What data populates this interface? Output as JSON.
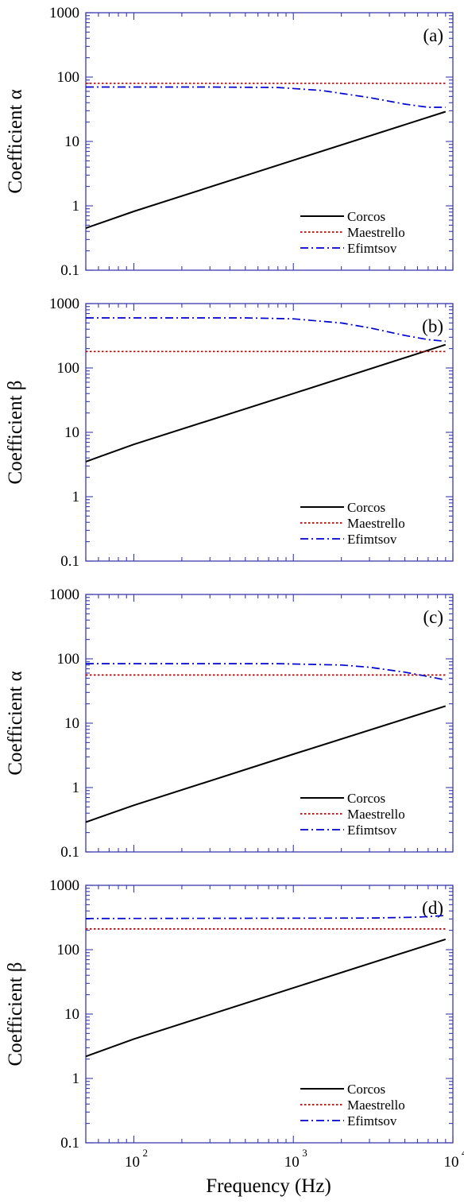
{
  "xaxis": {
    "label": "Frequency (Hz)",
    "range": [
      50,
      10000
    ],
    "scale": "log",
    "ticks": [
      {
        "base": "10",
        "exp": "2",
        "value": 100
      },
      {
        "base": "10",
        "exp": "3",
        "value": 1000
      },
      {
        "base": "10",
        "exp": "4",
        "value": 10000
      }
    ]
  },
  "colors": {
    "axes": "#3a3ab0",
    "Corcos": "#000000",
    "Maestrello": "#c00000",
    "Efimtsov": "#0000cc"
  },
  "chart_data": [
    {
      "type": "line",
      "panel_label": "(a)",
      "ylabel": "Coefficient α",
      "yscale": "log",
      "ylim": [
        0.1,
        1000
      ],
      "yticks": [
        "0.1",
        "1",
        "10",
        "100",
        "1000"
      ],
      "legend": {
        "placement": "bottom-right",
        "entries": [
          "Corcos",
          "Maestrello",
          "Efimtsov"
        ]
      },
      "series": [
        {
          "name": "Corcos",
          "style": "solid",
          "x": [
            50,
            100,
            1000,
            9000
          ],
          "y": [
            0.45,
            0.82,
            5.1,
            29
          ]
        },
        {
          "name": "Maestrello",
          "style": "dotted",
          "x": [
            50,
            9000
          ],
          "y": [
            80,
            80
          ]
        },
        {
          "name": "Efimtsov",
          "style": "dash-dot",
          "x": [
            50,
            300,
            800,
            1500,
            3000,
            5000,
            7000,
            9000
          ],
          "y": [
            70,
            70,
            69,
            62,
            48,
            38,
            34,
            34
          ]
        }
      ]
    },
    {
      "type": "line",
      "panel_label": "(b)",
      "ylabel": "Coefficient β",
      "yscale": "log",
      "ylim": [
        0.1,
        1000
      ],
      "yticks": [
        "0.1",
        "1",
        "10",
        "100",
        "1000"
      ],
      "legend": {
        "placement": "bottom-right",
        "entries": [
          "Corcos",
          "Maestrello",
          "Efimtsov"
        ]
      },
      "series": [
        {
          "name": "Corcos",
          "style": "solid",
          "x": [
            50,
            100,
            1000,
            9000
          ],
          "y": [
            3.5,
            6.5,
            40,
            230
          ]
        },
        {
          "name": "Maestrello",
          "style": "dotted",
          "x": [
            50,
            9000
          ],
          "y": [
            180,
            180
          ]
        },
        {
          "name": "Efimtsov",
          "style": "dash-dot",
          "x": [
            50,
            500,
            1000,
            2000,
            3000,
            5000,
            7000,
            9000
          ],
          "y": [
            600,
            600,
            580,
            500,
            420,
            320,
            275,
            260
          ]
        }
      ]
    },
    {
      "type": "line",
      "panel_label": "(c)",
      "ylabel": "Coefficient α",
      "yscale": "log",
      "ylim": [
        0.1,
        1000
      ],
      "yticks": [
        "0.1",
        "1",
        "10",
        "100",
        "1000"
      ],
      "legend": {
        "placement": "bottom-right",
        "entries": [
          "Corcos",
          "Maestrello",
          "Efimtsov"
        ]
      },
      "series": [
        {
          "name": "Corcos",
          "style": "solid",
          "x": [
            50,
            100,
            1000,
            9000
          ],
          "y": [
            0.29,
            0.53,
            3.3,
            18.5
          ]
        },
        {
          "name": "Maestrello",
          "style": "dotted",
          "x": [
            50,
            9000
          ],
          "y": [
            56,
            56
          ]
        },
        {
          "name": "Efimtsov",
          "style": "dash-dot",
          "x": [
            50,
            800,
            2000,
            3000,
            5000,
            7000,
            9000
          ],
          "y": [
            84,
            84,
            80,
            74,
            62,
            53,
            47
          ]
        }
      ]
    },
    {
      "type": "line",
      "panel_label": "(d)",
      "ylabel": "Coefficient β",
      "yscale": "log",
      "ylim": [
        0.1,
        1000
      ],
      "yticks": [
        "0.1",
        "1",
        "10",
        "100",
        "1000"
      ],
      "legend": {
        "placement": "bottom-right",
        "entries": [
          "Corcos",
          "Maestrello",
          "Efimtsov"
        ]
      },
      "series": [
        {
          "name": "Corcos",
          "style": "solid",
          "x": [
            50,
            100,
            1000,
            9000
          ],
          "y": [
            2.2,
            4.1,
            25.5,
            145
          ]
        },
        {
          "name": "Maestrello",
          "style": "dotted",
          "x": [
            50,
            9000
          ],
          "y": [
            210,
            210
          ]
        },
        {
          "name": "Efimtsov",
          "style": "dash-dot",
          "x": [
            50,
            3000,
            6000,
            9000
          ],
          "y": [
            305,
            310,
            320,
            340
          ]
        }
      ]
    }
  ]
}
